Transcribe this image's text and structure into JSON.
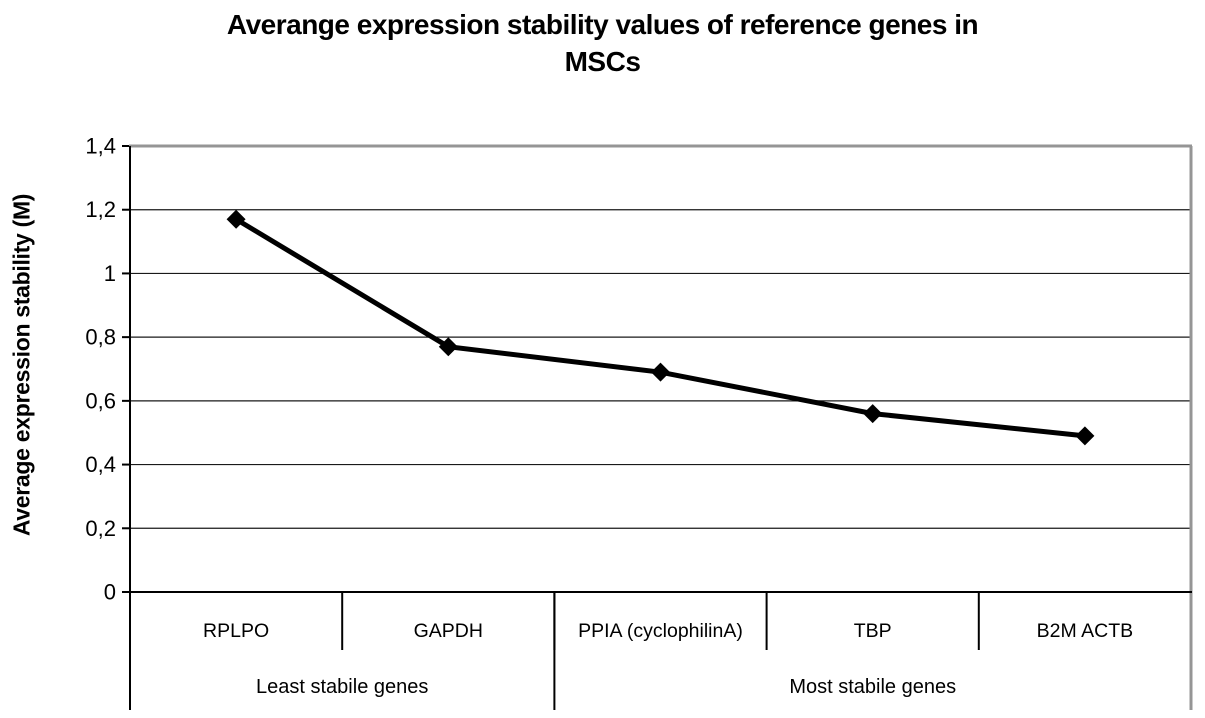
{
  "title": {
    "line1": "Averange expression stability values of reference genes in",
    "line2": "MSCs"
  },
  "chart_data": {
    "type": "line",
    "title": "Averange expression stability values of reference genes in MSCs",
    "ylabel": "Average expression stability (M)",
    "xlabel": "",
    "ylim": [
      0,
      1.4
    ],
    "y_tick_step": 0.2,
    "y_tick_labels": [
      "0",
      "0,2",
      "0,4",
      "0,6",
      "0,8",
      "1",
      "1,2",
      "1,4"
    ],
    "categories": [
      "RPLPO",
      "GAPDH",
      "PPIA (cyclophilinA)",
      "TBP",
      "B2M ACTB"
    ],
    "values": [
      1.17,
      0.77,
      0.69,
      0.56,
      0.49
    ],
    "groups": [
      {
        "label": "Least stabile genes",
        "span": [
          0,
          2
        ]
      },
      {
        "label": "Most stabile genes",
        "span": [
          2,
          5
        ]
      }
    ],
    "grid": true,
    "legend": false,
    "marker": "diamond",
    "colors": {
      "line": "#000000",
      "marker": "#000000",
      "gridline": "#1a1a1a",
      "axis": "#000000",
      "plot_border": "#959595",
      "text": "#000000",
      "background": "#ffffff"
    }
  }
}
